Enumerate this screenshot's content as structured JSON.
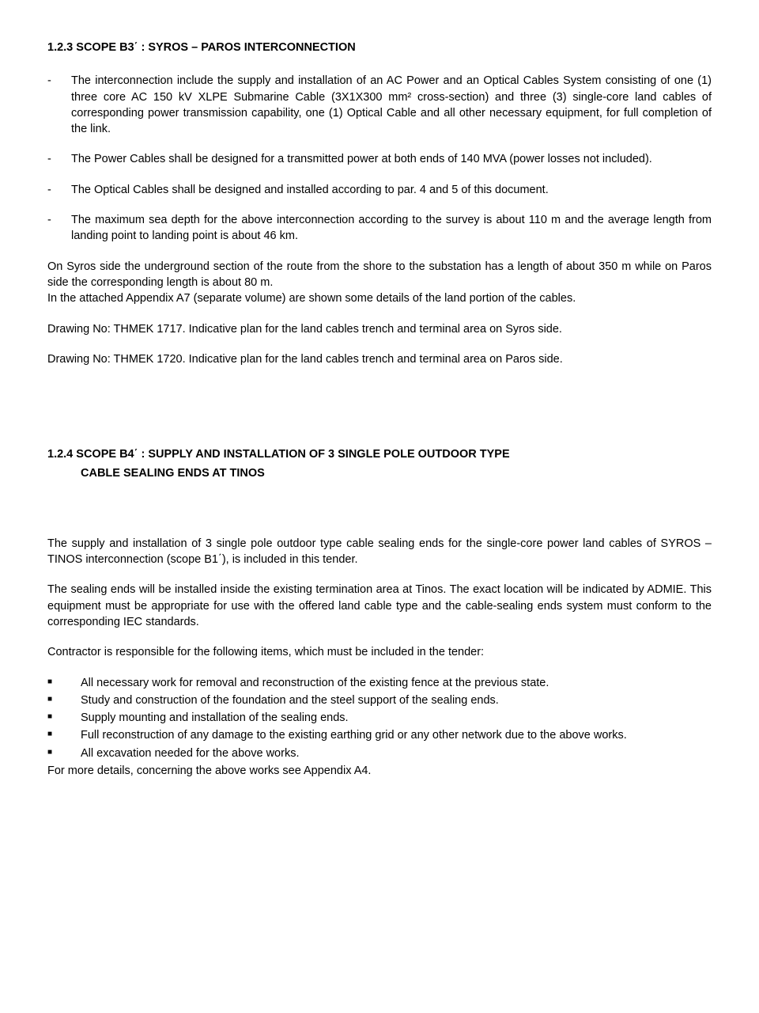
{
  "s1": {
    "heading": "1.2.3  SCOPE Β3΄ : SYROS – PAROS INTERCONNECTION",
    "b1": "The interconnection include the supply and installation of an AC Power and an Optical Cables System consisting of one (1) three core AC 150 kV XLPE Submarine Cable (3X1X300 mm² cross-section) and three (3) single-core land cables of corresponding power transmission capability, one (1) Optical Cable and all other necessary equipment, for full completion of the link.",
    "b2": "The Power Cables shall be designed for a transmitted power at both ends of 140 MVA (power losses not included).",
    "b3": "The Optical Cables shall be designed and installed according to par. 4 and 5 of this document.",
    "b4": "The maximum sea depth for the above interconnection according to the survey is about 110 m and the average length from landing point to landing point is about 46 km.",
    "p1": "On Syros side the underground section of the route from the shore to the substation has a length of about 350 m while on Paros side the corresponding length is about 80 m.",
    "p2": "In the attached Appendix A7 (separate volume) are shown some details of the land portion of the cables.",
    "p3": "Drawing No: THMEK 1717. Indicative plan for the land cables trench and terminal area on Syros side.",
    "p4": "Drawing No: THMEK 1720. Indicative plan for the land cables trench and terminal area on Paros side."
  },
  "s2": {
    "heading_l1": "1.2.4  SCOPE Β4΄ : SUPPLY AND INSTALLATION OF 3 SINGLE POLE OUTDOOR TYPE",
    "heading_l2": "CABLE SEALING ENDS AT  TINOS",
    "p1": "The supply and installation of 3 single pole outdoor type cable sealing ends for the single-core power land cables of SYROS – TINOS interconnection (scope B1΄), is included in this tender.",
    "p2": "The sealing ends will be installed inside the existing termination area at Tinos. The exact location will be indicated by ADMIE. This equipment must be appropriate for use with the offered land cable type and the cable-sealing ends system must conform to the corresponding IEC standards.",
    "p3": "Contractor is responsible for the following items, which must be included in the tender:",
    "items": [
      "All necessary work for removal and reconstruction of the existing fence at the previous state.",
      "Study and construction of the foundation and the steel support of the sealing ends.",
      "Supply mounting and installation of the sealing ends.",
      "Full reconstruction of any damage to the existing earthing grid or any other network due to the above works.",
      "All excavation needed for the above works."
    ],
    "p4": "For more details, concerning the above works see Appendix A4."
  }
}
